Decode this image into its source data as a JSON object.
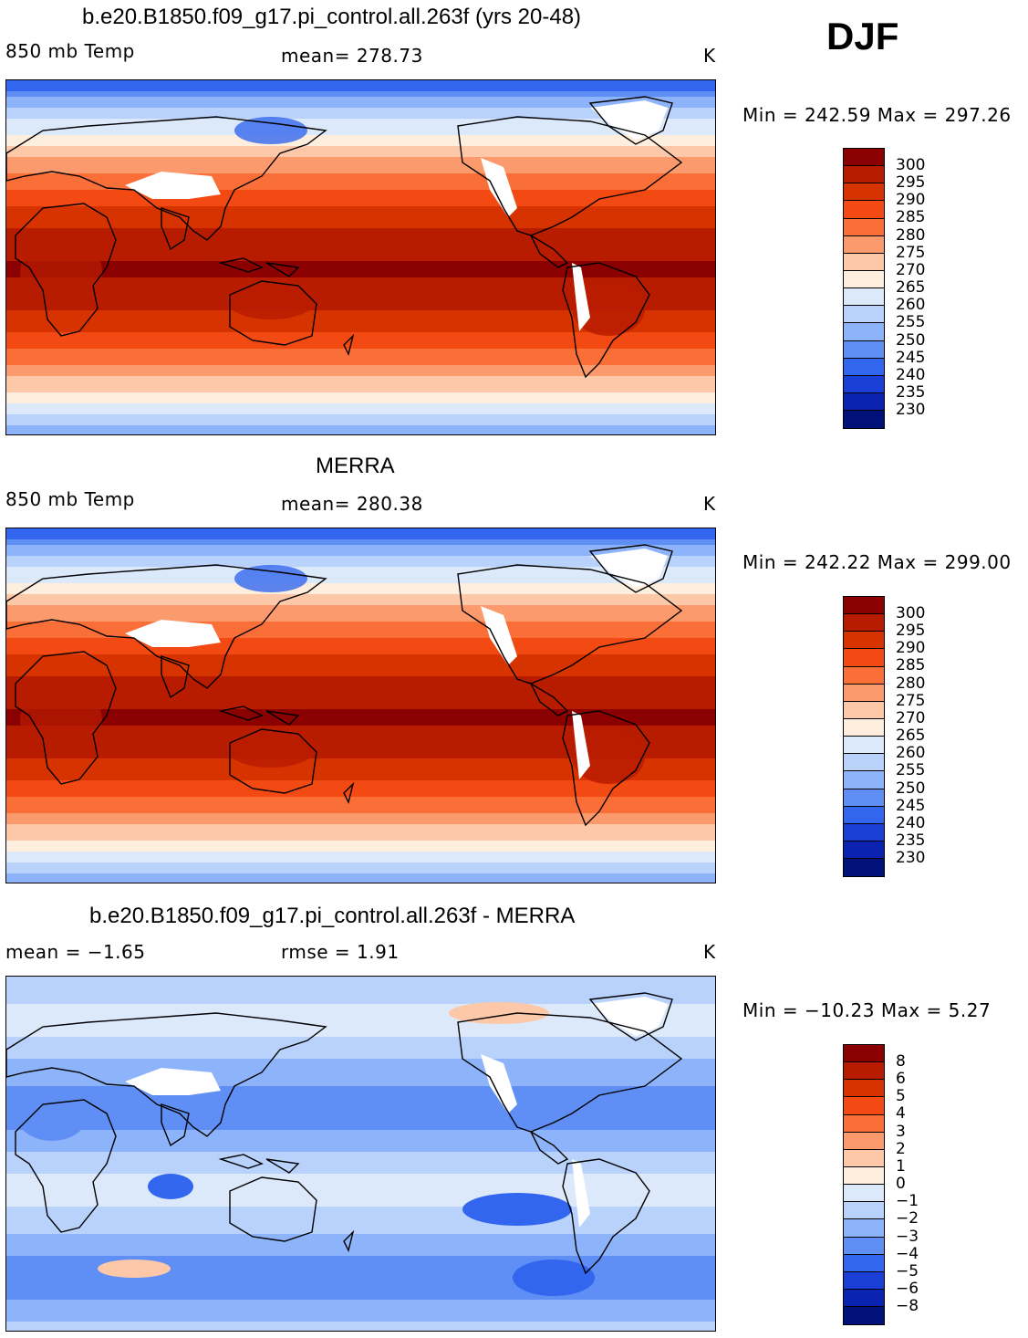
{
  "season": "DJF",
  "panels": [
    {
      "title": "b.e20.B1850.f09_g17.pi_control.all.263f (yrs 20-48)",
      "variable": "850 mb Temp",
      "stat": "mean=  278.73",
      "units": "K",
      "minmax": "Min = 242.59 Max = 297.26",
      "scheme": "warm"
    },
    {
      "title": "MERRA",
      "variable": "850 mb Temp",
      "stat": "mean=  280.38",
      "units": "K",
      "minmax": "Min = 242.22 Max = 299.00",
      "scheme": "warm"
    },
    {
      "title": "b.e20.B1850.f09_g17.pi_control.all.263f - MERRA",
      "variable": "mean =   −1.65",
      "stat": "rmse =    1.91",
      "units": "K",
      "minmax": "Min = −10.23 Max =    5.27",
      "scheme": "diff"
    }
  ],
  "colorbars": {
    "absolute": {
      "labels": [
        "300",
        "295",
        "290",
        "285",
        "280",
        "275",
        "270",
        "265",
        "260",
        "255",
        "250",
        "245",
        "240",
        "235",
        "230"
      ],
      "colors": [
        "#8b0000",
        "#b81c00",
        "#d63300",
        "#f24a12",
        "#fa6e38",
        "#fb9a6c",
        "#fdc8a8",
        "#feeedd",
        "#dce9fa",
        "#b8d2fb",
        "#8db4fa",
        "#5f8ef5",
        "#3366ef",
        "#1a3fd6",
        "#0a23b0",
        "#00127a"
      ]
    },
    "difference": {
      "labels": [
        "8",
        "6",
        "5",
        "4",
        "3",
        "2",
        "1",
        "0",
        "−1",
        "−2",
        "−3",
        "−4",
        "−5",
        "−6",
        "−8"
      ],
      "colors": [
        "#8b0000",
        "#b81c00",
        "#d63300",
        "#f24a12",
        "#fa6e38",
        "#fb9a6c",
        "#fdc8a8",
        "#feeedd",
        "#dce9fa",
        "#b8d2fb",
        "#8db4fa",
        "#5f8ef5",
        "#3366ef",
        "#1a3fd6",
        "#0a23b0",
        "#00127a"
      ]
    }
  }
}
